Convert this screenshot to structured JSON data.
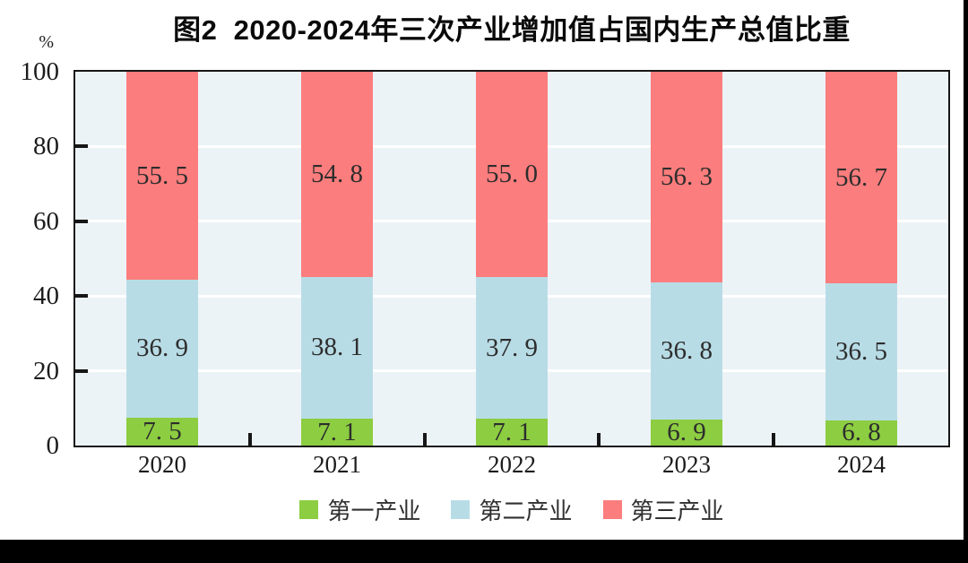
{
  "chart_data": {
    "type": "bar",
    "stacked": true,
    "title": "图2  2020-2024年三次产业增加值占国内生产总值比重",
    "ylabel": "%",
    "xlabel": "",
    "categories": [
      "2020",
      "2021",
      "2022",
      "2023",
      "2024"
    ],
    "series": [
      {
        "id": "primary-industry",
        "name": "第一产业",
        "color": "#8ccd41",
        "values": [
          7.5,
          7.1,
          7.1,
          6.9,
          6.8
        ]
      },
      {
        "id": "secondary-industry",
        "name": "第二产业",
        "color": "#b8dce6",
        "values": [
          36.9,
          38.1,
          37.9,
          36.8,
          36.5
        ]
      },
      {
        "id": "tertiary-industry",
        "name": "第三产业",
        "color": "#fc7d7d",
        "values": [
          55.5,
          54.8,
          55.0,
          56.3,
          56.7
        ]
      }
    ],
    "ylim": [
      0,
      100
    ],
    "yticks": [
      0,
      20,
      40,
      60,
      80,
      100
    ],
    "grid": true,
    "gridline_color": "#ffffff",
    "plot_background": "#ecf3f7",
    "frame_color": "#161616",
    "legend_position": "bottom",
    "value_label_format": "one-decimal-with-space-after-point"
  }
}
